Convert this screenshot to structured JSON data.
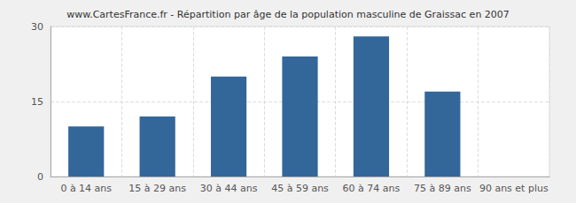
{
  "chart_data": {
    "type": "bar",
    "title": "www.CartesFrance.fr - Répartition par âge de la population masculine de Graissac en 2007",
    "categories": [
      "0 à 14 ans",
      "15 à 29 ans",
      "30 à 44 ans",
      "45 à 59 ans",
      "60 à 74 ans",
      "75 à 89 ans",
      "90 ans et plus"
    ],
    "values": [
      10,
      12,
      20,
      24,
      28,
      17,
      0
    ],
    "color": "#336699",
    "ylim": [
      0,
      30
    ],
    "yticks": [
      0,
      15,
      30
    ],
    "grid": true
  }
}
